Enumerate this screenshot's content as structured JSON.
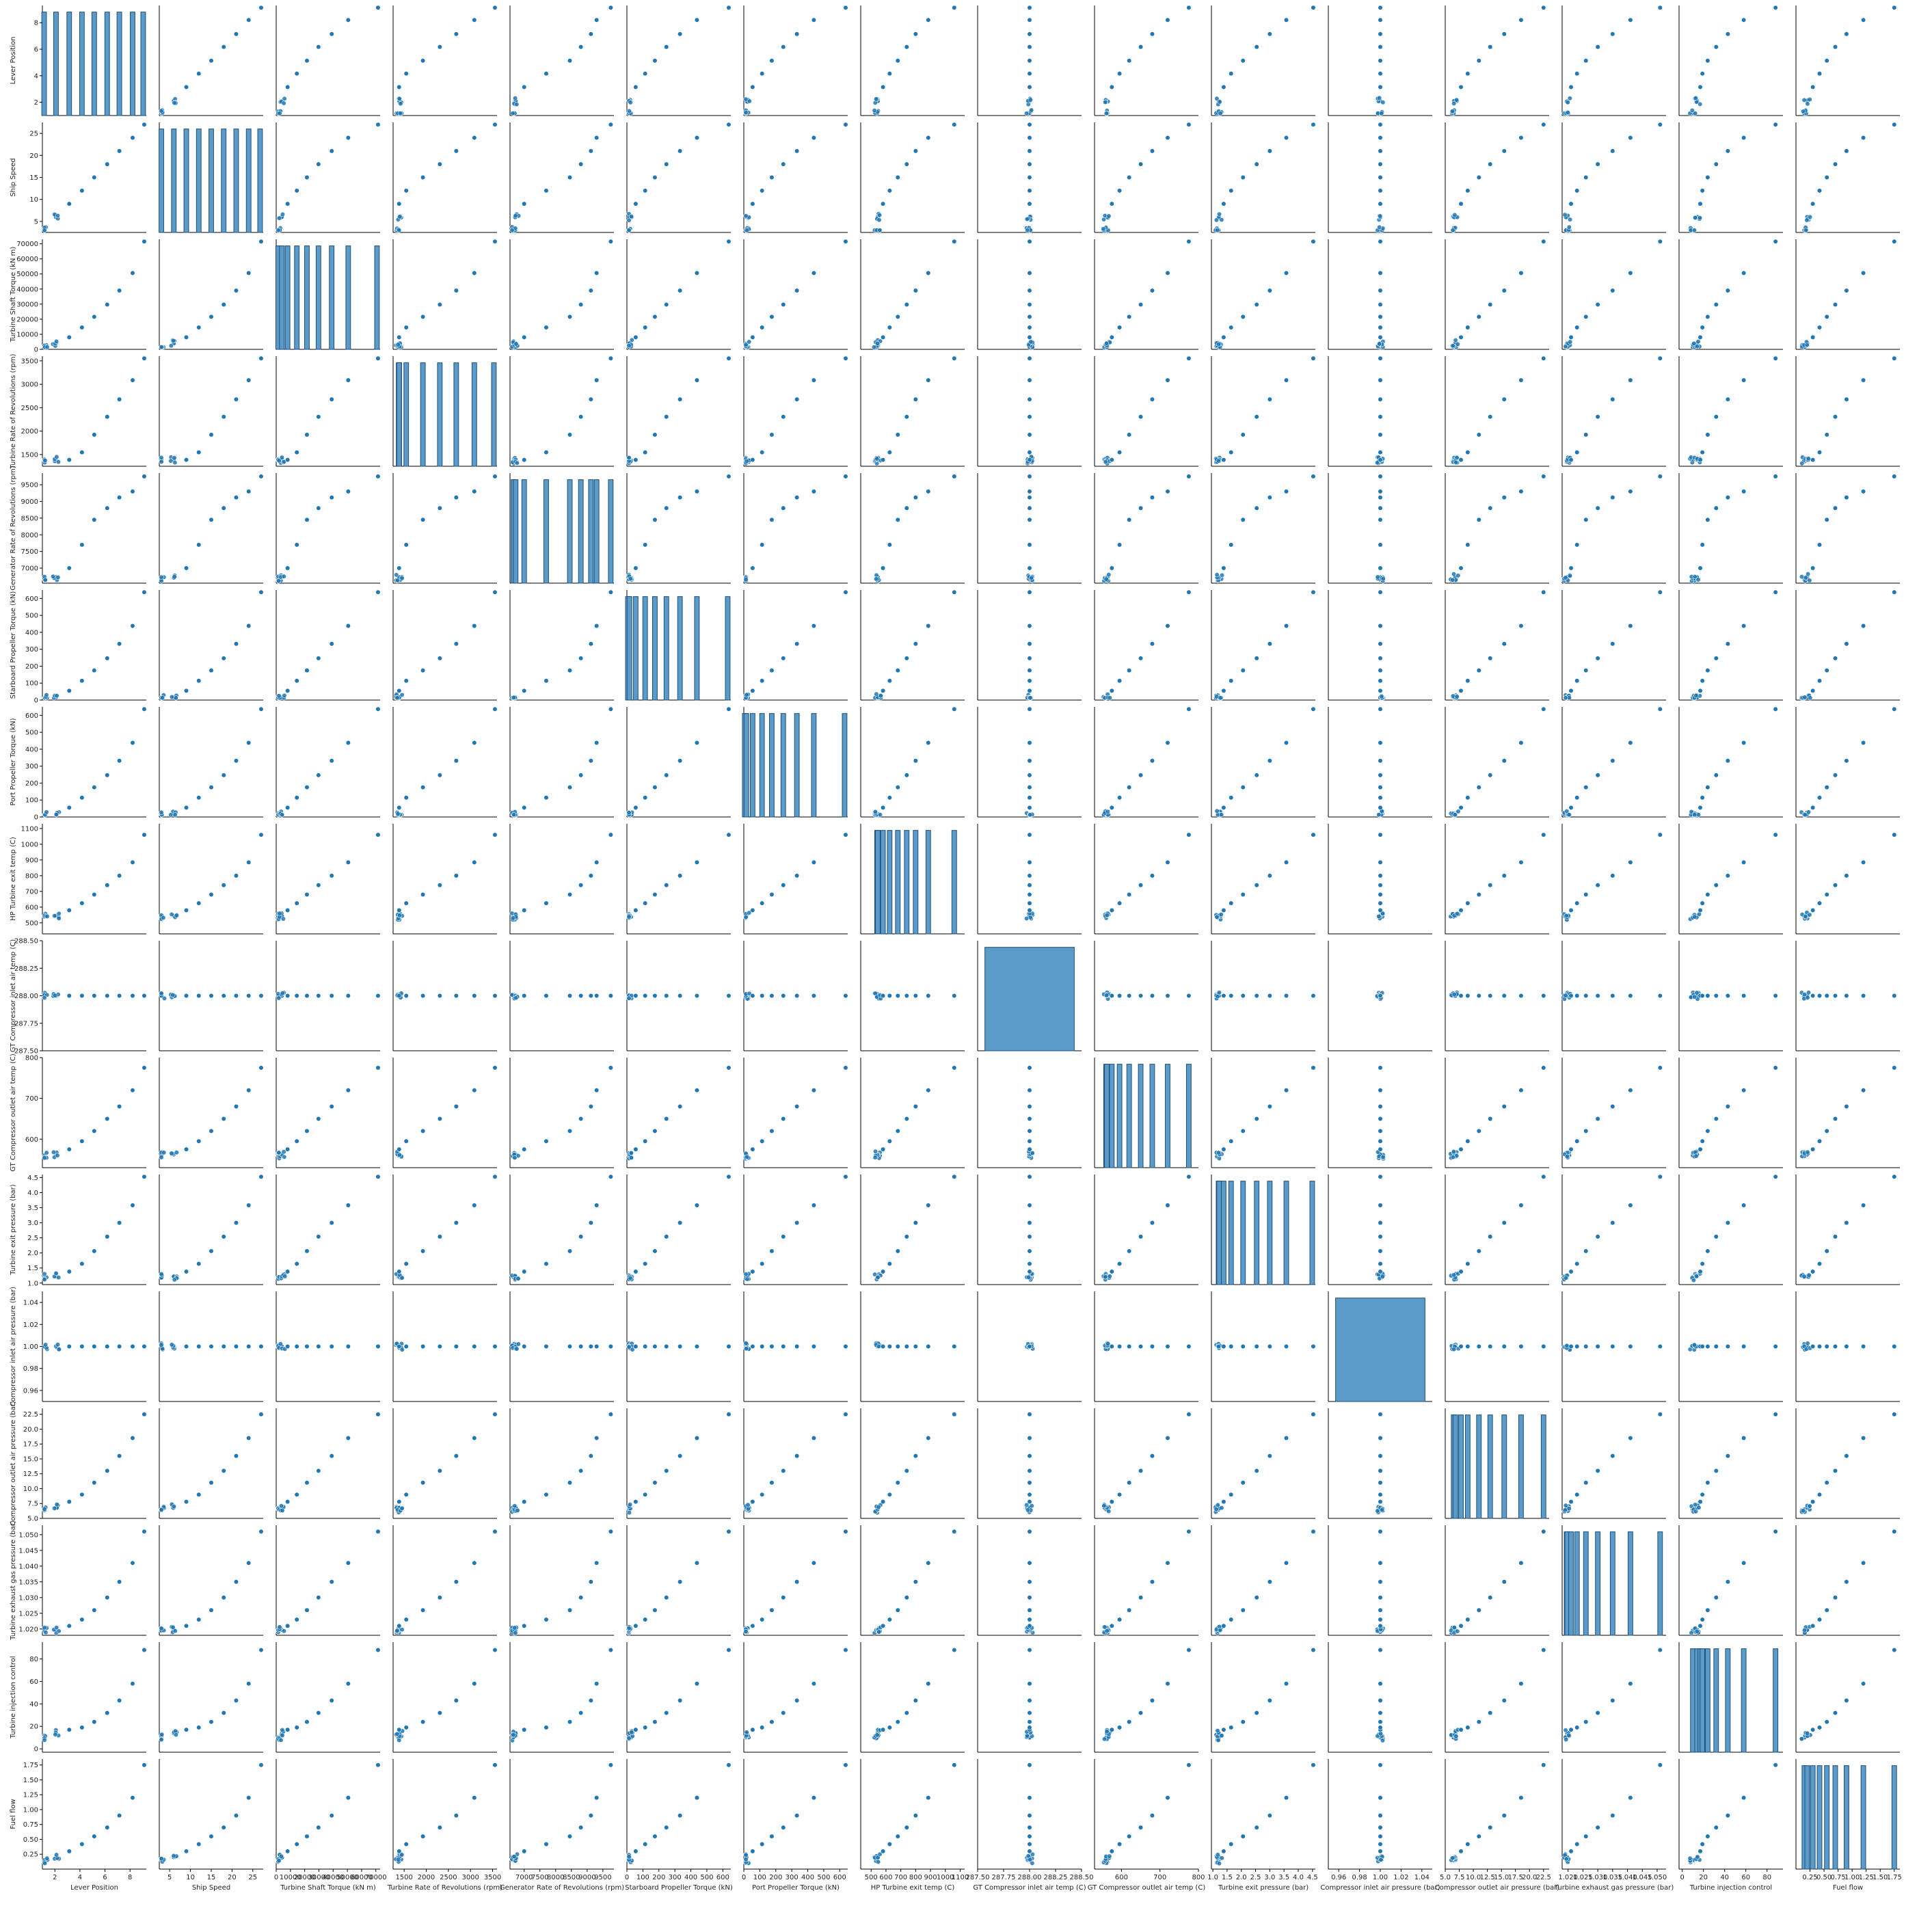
{
  "chart_data": {
    "type": "scatter",
    "kind": "pairplot",
    "diagonal": "histogram",
    "grid": false,
    "colors": {
      "marker": "#1f77b4",
      "hist_fill": "#5b9bc9",
      "hist_edge": "#1f4e79",
      "axis": "#000000"
    },
    "variables": [
      {
        "label": "Lever Position",
        "range": [
          1.0,
          9.3
        ],
        "ticks": [
          2,
          4,
          6,
          8
        ],
        "tick_labels": [
          "2",
          "4",
          "6",
          "8"
        ],
        "levels": [
          1.138,
          2.088,
          3.144,
          4.161,
          5.14,
          6.175,
          7.148,
          8.206,
          9.3
        ]
      },
      {
        "label": "Ship Speed",
        "range": [
          2.5,
          27.5
        ],
        "ticks": [
          5,
          10,
          15,
          20,
          25
        ],
        "tick_labels": [
          "5",
          "10",
          "15",
          "20",
          "25"
        ],
        "levels": [
          3,
          6,
          9,
          12,
          15,
          18,
          21,
          24,
          27
        ]
      },
      {
        "label": "Turbine Shaft Torque (kN m)",
        "range": [
          0,
          73000
        ],
        "ticks": [
          0,
          10000,
          20000,
          30000,
          40000,
          50000,
          60000,
          70000
        ],
        "tick_labels": [
          "0",
          "10000",
          "20000",
          "30000",
          "40000",
          "50000",
          "60000",
          "70000"
        ],
        "levels": [
          1400,
          4000,
          8000,
          14500,
          21600,
          29700,
          39000,
          50600,
          72000
        ]
      },
      {
        "label": "Turbine Rate of Revolutions (rpm)",
        "range": [
          1250,
          3600
        ],
        "ticks": [
          1500,
          2000,
          2500,
          3000,
          3500
        ],
        "tick_labels": [
          "1500",
          "2000",
          "2500",
          "3000",
          "3500"
        ],
        "levels": [
          1375,
          1390,
          1386,
          1547,
          1924,
          2307,
          2678,
          3087,
          3560
        ]
      },
      {
        "label": "Generator Rate of Revolutions (rpm)",
        "range": [
          6550,
          9850
        ],
        "ticks": [
          7000,
          7500,
          8000,
          8500,
          9000,
          9500
        ],
        "tick_labels": [
          "7000",
          "7500",
          "8000",
          "8500",
          "9000",
          "9500"
        ],
        "levels": [
          6660,
          6730,
          7000,
          7700,
          8450,
          8800,
          9120,
          9300,
          9750
        ]
      },
      {
        "label": "Starboard Propeller Torque (kN)",
        "range": [
          0,
          650
        ],
        "ticks": [
          0,
          100,
          200,
          300,
          400,
          500,
          600
        ],
        "tick_labels": [
          "0",
          "100",
          "200",
          "300",
          "400",
          "500",
          "600"
        ],
        "levels": [
          6,
          16,
          55,
          114,
          175,
          247,
          332,
          438,
          645
        ]
      },
      {
        "label": "Port Propeller Torque (kN)",
        "range": [
          0,
          650
        ],
        "ticks": [
          0,
          100,
          200,
          300,
          400,
          500,
          600
        ],
        "tick_labels": [
          "0",
          "100",
          "200",
          "300",
          "400",
          "500",
          "600"
        ],
        "levels": [
          6,
          16,
          55,
          114,
          175,
          247,
          332,
          438,
          645
        ]
      },
      {
        "label": "HP Turbine exit temp (C)",
        "range": [
          430,
          1130
        ],
        "ticks": [
          500,
          600,
          700,
          800,
          900,
          1000,
          1100
        ],
        "tick_labels": [
          "500",
          "600",
          "700",
          "800",
          "900",
          "1000",
          "1100"
        ],
        "levels": [
          540,
          545,
          580,
          625,
          680,
          740,
          800,
          885,
          1060
        ]
      },
      {
        "label": "GT Compressor inlet air temp (C)",
        "range": [
          287.5,
          288.5
        ],
        "ticks": [
          287.5,
          287.75,
          288.0,
          288.25,
          288.5
        ],
        "tick_labels": [
          "287.50",
          "287.75",
          "288.00",
          "288.25",
          "288.50"
        ],
        "levels": [
          288,
          288,
          288,
          288,
          288,
          288,
          288,
          288,
          288
        ]
      },
      {
        "label": "GT Compressor outlet air temp (C)",
        "range": [
          530,
          800
        ],
        "ticks": [
          600,
          700,
          800
        ],
        "tick_labels": [
          "600",
          "700",
          "800"
        ],
        "levels": [
          560,
          562,
          575,
          595,
          620,
          650,
          680,
          720,
          775
        ]
      },
      {
        "label": "Turbine exit pressure (bar)",
        "range": [
          0.95,
          4.6
        ],
        "ticks": [
          1.0,
          1.5,
          2.0,
          2.5,
          3.0,
          3.5,
          4.0,
          4.5
        ],
        "tick_labels": [
          "1.0",
          "1.5",
          "2.0",
          "2.5",
          "3.0",
          "3.5",
          "4.0",
          "4.5"
        ],
        "levels": [
          1.2,
          1.22,
          1.38,
          1.64,
          2.06,
          2.54,
          3.0,
          3.58,
          4.54
        ]
      },
      {
        "label": "Compressor inlet air pressure (bar)",
        "range": [
          0.95,
          1.05
        ],
        "ticks": [
          0.96,
          0.98,
          1.0,
          1.02,
          1.04
        ],
        "tick_labels": [
          "0.96",
          "0.98",
          "1.00",
          "1.02",
          "1.04"
        ],
        "levels": [
          1,
          1,
          1,
          1,
          1,
          1,
          1,
          1,
          1
        ]
      },
      {
        "label": "Compressor outlet air pressure (bar)",
        "range": [
          5.0,
          23.5
        ],
        "ticks": [
          5,
          7.5,
          10,
          12.5,
          15,
          17.5,
          20,
          22.5
        ],
        "tick_labels": [
          "5.0",
          "7.5",
          "10.0",
          "12.5",
          "15.0",
          "17.5",
          "20.0",
          "22.5"
        ],
        "levels": [
          6.5,
          6.8,
          7.8,
          9.0,
          11.0,
          13.0,
          15.5,
          18.5,
          22.5
        ]
      },
      {
        "label": "Turbine exhaust gas pressure (bar)",
        "range": [
          1.018,
          1.053
        ],
        "ticks": [
          1.02,
          1.025,
          1.03,
          1.035,
          1.04,
          1.045,
          1.05
        ],
        "tick_labels": [
          "1.020",
          "1.025",
          "1.030",
          "1.035",
          "1.040",
          "1.045",
          "1.050"
        ],
        "levels": [
          1.0195,
          1.0197,
          1.021,
          1.023,
          1.026,
          1.03,
          1.035,
          1.041,
          1.051
        ]
      },
      {
        "label": "Turbine injection control",
        "range": [
          -3,
          95
        ],
        "ticks": [
          0,
          20,
          40,
          60,
          80
        ],
        "tick_labels": [
          "0",
          "20",
          "40",
          "60",
          "80"
        ],
        "levels": [
          10,
          14,
          17,
          19,
          24,
          32,
          43,
          58,
          88
        ]
      },
      {
        "label": "Fuel flow",
        "range": [
          0.0,
          1.85
        ],
        "ticks": [
          0.25,
          0.5,
          0.75,
          1.0,
          1.25,
          1.5,
          1.75
        ],
        "tick_labels": [
          "0.25",
          "0.50",
          "0.75",
          "1.00",
          "1.25",
          "1.50",
          "1.75"
        ],
        "levels": [
          0.15,
          0.2,
          0.3,
          0.42,
          0.55,
          0.7,
          0.9,
          1.2,
          1.75
        ]
      }
    ]
  }
}
